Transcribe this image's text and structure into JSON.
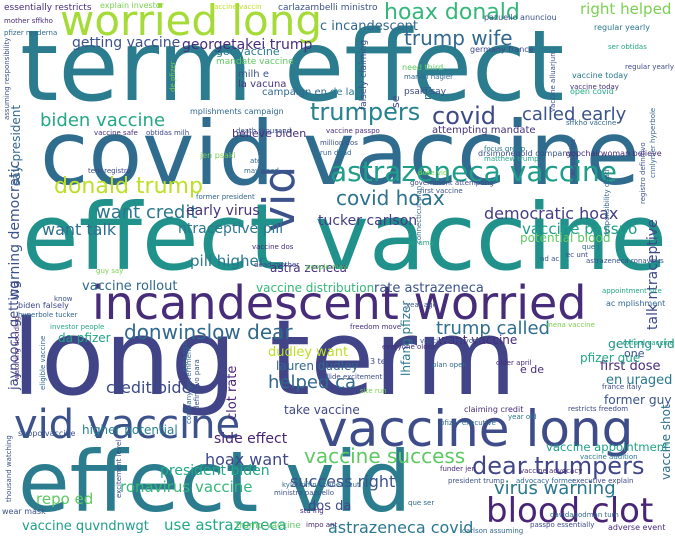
{
  "words": [
    {
      "text": "term effect",
      "color": "#2b7c8e"
    },
    {
      "text": "covid vaccine",
      "color": "#2f6c8e"
    },
    {
      "text": "effect vaccine",
      "color": "#21918c"
    },
    {
      "text": "long term",
      "color": "#414487"
    },
    {
      "text": "effect vid",
      "color": "#2b7c8e"
    },
    {
      "text": "incandescent worried",
      "color": "#472c7a"
    },
    {
      "text": "vaccine long",
      "color": "#3e4c8a"
    },
    {
      "text": "vid vaccine",
      "color": "#3b528b"
    },
    {
      "text": "worried long",
      "color": "#a5db36"
    },
    {
      "text": "vid",
      "color": "#3b528b"
    },
    {
      "text": "blood clot",
      "color": "#482576"
    },
    {
      "text": "astrazeneca vaccine",
      "color": "#1f9e89"
    },
    {
      "text": "donald trump",
      "color": "#bddf26"
    },
    {
      "text": "dear trumpers",
      "color": "#404688"
    },
    {
      "text": "hoax donald",
      "color": "#35b779"
    },
    {
      "text": "trump wife",
      "color": "#31688e"
    },
    {
      "text": "biden vaccine",
      "color": "#22a884"
    },
    {
      "text": "trumpers",
      "color": "#26828e"
    },
    {
      "text": "covid",
      "color": "#3e4989"
    },
    {
      "text": "called early",
      "color": "#3b528b"
    },
    {
      "text": "covid hoax",
      "color": "#2c728e"
    },
    {
      "text": "want credit",
      "color": "#2a788e"
    },
    {
      "text": "early virus",
      "color": "#46337f"
    },
    {
      "text": "democratic hoax",
      "color": "#433e85"
    },
    {
      "text": "donwinslow dear",
      "color": "#31688e"
    },
    {
      "text": "trump called",
      "color": "#2e6e8e"
    },
    {
      "text": "vaccine success",
      "color": "#5ec962"
    },
    {
      "text": "success right",
      "color": "#3b528b"
    },
    {
      "text": "virus warning",
      "color": "#2a788e"
    },
    {
      "text": "credit biden",
      "color": "#3e4989"
    },
    {
      "text": "helped ca",
      "color": "#31688e"
    },
    {
      "text": "astrazeneca covid",
      "color": "#2a788e"
    },
    {
      "text": "use astrazeneca",
      "color": "#22a884"
    },
    {
      "text": "vaccine quvndnwgt",
      "color": "#1f9e89"
    },
    {
      "text": "ronavirus vaccine",
      "color": "#35b779"
    },
    {
      "text": "vaccine appointment",
      "color": "#20a386"
    },
    {
      "text": "right helped",
      "color": "#7ad151"
    },
    {
      "text": "getting vaccine",
      "color": "#3b528b"
    },
    {
      "text": "georgetakei trump",
      "color": "#472c7a"
    },
    {
      "text": "c incandescent",
      "color": "#31688e"
    },
    {
      "text": "hoax want",
      "color": "#3e4989"
    },
    {
      "text": "side effect",
      "color": "#482576"
    },
    {
      "text": "president biden",
      "color": "#22a884"
    },
    {
      "text": "repo ed",
      "color": "#5ec962"
    },
    {
      "text": "vaccine rollout",
      "color": "#31688e"
    },
    {
      "text": "vaccine passpo",
      "color": "#1f9e89"
    },
    {
      "text": "pill higher",
      "color": "#2a788e"
    },
    {
      "text": "tucker carlson",
      "color": "#433e85"
    },
    {
      "text": "want talk",
      "color": "#2d708e"
    },
    {
      "text": "warning democratic",
      "color": "#3b528b"
    },
    {
      "text": "getting vid",
      "color": "#21918c"
    },
    {
      "text": "talk ntraceptive",
      "color": "#3e4989"
    },
    {
      "text": "first dose",
      "color": "#472c7a"
    },
    {
      "text": "en uraged",
      "color": "#2a788e"
    },
    {
      "text": "former guy",
      "color": "#3b528b"
    },
    {
      "text": "pfizer que",
      "color": "#22a884"
    },
    {
      "text": "vaccine shot",
      "color": "#2e6e8e"
    },
    {
      "text": "take vaccine",
      "color": "#3e4989"
    },
    {
      "text": "lauren dudley",
      "color": "#31688e"
    },
    {
      "text": "dudley want",
      "color": "#bddf26"
    },
    {
      "text": "clot rate",
      "color": "#482576"
    },
    {
      "text": "higher potential",
      "color": "#26828e"
    },
    {
      "text": "ntraceptive pill",
      "color": "#2a788e"
    },
    {
      "text": "astra zeneca",
      "color": "#46337f"
    },
    {
      "text": "rate astrazeneca",
      "color": "#3b528b"
    },
    {
      "text": "vaccine distribution",
      "color": "#35b779"
    },
    {
      "text": "want vaccine",
      "color": "#472c7a"
    },
    {
      "text": "jaynooch getting",
      "color": "#3e4989"
    },
    {
      "text": "da pfizer",
      "color": "#20a386"
    },
    {
      "text": "potential blood",
      "color": "#5ec962"
    },
    {
      "text": "say president",
      "color": "#31688e"
    },
    {
      "text": "dos da",
      "color": "#3e4989"
    },
    {
      "text": "lhfang pfizer",
      "color": "#2a788e"
    },
    {
      "text": "believe biden",
      "color": "#472c7a"
    },
    {
      "text": "essentially restricts",
      "color": "#472c7a"
    },
    {
      "text": "carlazambelli ministro",
      "color": "#3b528b"
    },
    {
      "text": "explain investor",
      "color": "#7ad151"
    },
    {
      "text": "vaccine vaccin",
      "color": "#bddf26"
    },
    {
      "text": "mother sffkho",
      "color": "#472c7a"
    },
    {
      "text": "pazuello anunciou",
      "color": "#3b528b"
    },
    {
      "text": "regular yearly",
      "color": "#2a788e"
    },
    {
      "text": "germany france",
      "color": "#3e4989"
    },
    {
      "text": "ser obtidas",
      "color": "#22a884"
    },
    {
      "text": "pfizer moderna",
      "color": "#31688e"
    },
    {
      "text": "mandate vaccine",
      "color": "#5ec962"
    },
    {
      "text": "got vaccine",
      "color": "#2a788e"
    },
    {
      "text": "milh e",
      "color": "#3b528b"
    },
    {
      "text": "la vacuna",
      "color": "#46337f"
    },
    {
      "text": "campaign en",
      "color": "#31688e"
    },
    {
      "text": "de la",
      "color": "#2a788e"
    },
    {
      "text": "falsely claiming",
      "color": "#3e4989"
    },
    {
      "text": "need third",
      "color": "#5ec962"
    },
    {
      "text": "marvin hagler",
      "color": "#31688e"
    },
    {
      "text": "psaki say",
      "color": "#3e4989"
    },
    {
      "text": "vaccine today",
      "color": "#2a788e"
    },
    {
      "text": "vaccine alluarjun",
      "color": "#3b528b"
    },
    {
      "text": "open covid",
      "color": "#22a884"
    },
    {
      "text": "mplishments campaign",
      "color": "#31688e"
    },
    {
      "text": "de pfizer",
      "color": "#7ad151"
    },
    {
      "text": "vaccine safe",
      "color": "#472c7a"
    },
    {
      "text": "obtidas milh",
      "color": "#3e4989"
    },
    {
      "text": "death thousand",
      "color": "#3b528b"
    },
    {
      "text": "attempting mandate",
      "color": "#46337f"
    },
    {
      "text": "drsimonegold company",
      "color": "#3b528b"
    },
    {
      "text": "gopchairwoman believe",
      "color": "#472c7a"
    },
    {
      "text": "tem registro",
      "color": "#3e4989"
    },
    {
      "text": "jen psaki",
      "color": "#7ad151"
    },
    {
      "text": "may need",
      "color": "#31688e"
    },
    {
      "text": "focus group",
      "color": "#2a788e"
    },
    {
      "text": "matthew trump",
      "color": "#22a884"
    },
    {
      "text": "government attempting",
      "color": "#3e4989"
    },
    {
      "text": "first vaccine",
      "color": "#3b528b"
    },
    {
      "text": "former president",
      "color": "#31688e"
    },
    {
      "text": "vaccine dos",
      "color": "#472c7a"
    },
    {
      "text": "dead mother",
      "color": "#3e4989"
    },
    {
      "text": "people may",
      "color": "#5ec962"
    },
    {
      "text": "guy say",
      "color": "#7ad151"
    },
    {
      "text": "astrazeneca ronavirus",
      "color": "#3b528b"
    },
    {
      "text": "appointment site",
      "color": "#22a884"
    },
    {
      "text": "ac mplishment",
      "color": "#31688e"
    },
    {
      "text": "biden falsely",
      "color": "#3e4989"
    },
    {
      "text": "hyperbole tucker",
      "color": "#31688e"
    },
    {
      "text": "investor people",
      "color": "#22a884"
    },
    {
      "text": "freedom move",
      "color": "#472c7a"
    },
    {
      "text": "year ago",
      "color": "#3b528b"
    },
    {
      "text": "plan open",
      "color": "#31688e"
    },
    {
      "text": "older april",
      "color": "#472c7a"
    },
    {
      "text": "france italy",
      "color": "#3e4989"
    },
    {
      "text": "oxford vaccine",
      "color": "#22a884"
    },
    {
      "text": "mena vaccine",
      "color": "#7ad151"
    },
    {
      "text": "vaccine everyone",
      "color": "#3b528b"
    },
    {
      "text": "company government",
      "color": "#31688e"
    },
    {
      "text": "claiming credit",
      "color": "#472c7a"
    },
    {
      "text": "restricts freedom",
      "color": "#3e4989"
    },
    {
      "text": "pfizer executive",
      "color": "#31688e"
    },
    {
      "text": "year old",
      "color": "#2a788e"
    },
    {
      "text": "suppo vaccine",
      "color": "#3b528b"
    },
    {
      "text": "funder jen",
      "color": "#472c7a"
    },
    {
      "text": "vaccine addition",
      "color": "#2a788e"
    },
    {
      "text": "executive explain",
      "color": "#3e4989"
    },
    {
      "text": "president trump",
      "color": "#3b528b"
    },
    {
      "text": "advocacy former",
      "color": "#31688e"
    },
    {
      "text": "vaccine advocacy",
      "color": "#472c7a"
    },
    {
      "text": "ministro pazuello",
      "color": "#3b528b"
    },
    {
      "text": "kylegriffin connecticut",
      "color": "#31688e"
    },
    {
      "text": "passpo essentially",
      "color": "#3e4989"
    },
    {
      "text": "adverse event",
      "color": "#472c7a"
    },
    {
      "text": "carlson assuming",
      "color": "#31688e"
    },
    {
      "text": "trump vaccine",
      "color": "#5ec962"
    },
    {
      "text": "wear mask",
      "color": "#3b528b"
    },
    {
      "text": "sta ing",
      "color": "#472c7a"
    },
    {
      "text": "davidagodman turn",
      "color": "#31688e"
    },
    {
      "text": "assuming responsibility",
      "color": "#3b528b"
    },
    {
      "text": "responsibility death",
      "color": "#31688e"
    },
    {
      "text": "regular yearly",
      "color": "#3e4989"
    },
    {
      "text": "connecticut plan",
      "color": "#31688e"
    },
    {
      "text": "excitement level",
      "color": "#3e4989"
    },
    {
      "text": "thousand watching",
      "color": "#3b528b"
    },
    {
      "text": "watching deciding",
      "color": "#472c7a"
    },
    {
      "text": "eligible vaccine",
      "color": "#31688e"
    },
    {
      "text": "collide excitement",
      "color": "#3e4989"
    },
    {
      "text": "definitivo para",
      "color": "#3b528b"
    },
    {
      "text": "ac uma",
      "color": "#22a884"
    },
    {
      "text": "site run",
      "color": "#7ad151"
    },
    {
      "text": "sffkho vaccine",
      "color": "#31688e"
    },
    {
      "text": "vaccine passpo",
      "color": "#472c7a"
    },
    {
      "text": "million dos",
      "color": "#3b528b"
    },
    {
      "text": "run dead",
      "color": "#31688e"
    },
    {
      "text": "one",
      "color": "#3b528b"
    },
    {
      "text": "e de",
      "color": "#472c7a"
    },
    {
      "text": "ate",
      "color": "#31688e"
    },
    {
      "text": "se",
      "color": "#3e4989"
    },
    {
      "text": "nd",
      "color": "#31688e"
    },
    {
      "text": "know",
      "color": "#3b528b"
    },
    {
      "text": "3 tem",
      "color": "#3e4989"
    },
    {
      "text": "que ser",
      "color": "#31688e"
    },
    {
      "text": "impo ant",
      "color": "#472c7a"
    },
    {
      "text": "ec unt",
      "color": "#3e4989"
    },
    {
      "text": "que j",
      "color": "#31688e"
    },
    {
      "text": "dose vid",
      "color": "#7ad151"
    },
    {
      "text": "registro definitivo",
      "color": "#3b528b"
    },
    {
      "text": "cnnlymer hyperbole",
      "color": "#31688e"
    },
    {
      "text": "vaccine today",
      "color": "#472c7a"
    },
    {
      "text": "ac vaccine",
      "color": "#3e4989"
    },
    {
      "text": "para uso",
      "color": "#31688e"
    },
    {
      "text": "nd ac",
      "color": "#3b528b"
    },
    {
      "text": "everyone older",
      "color": "#472c7a"
    }
  ]
}
